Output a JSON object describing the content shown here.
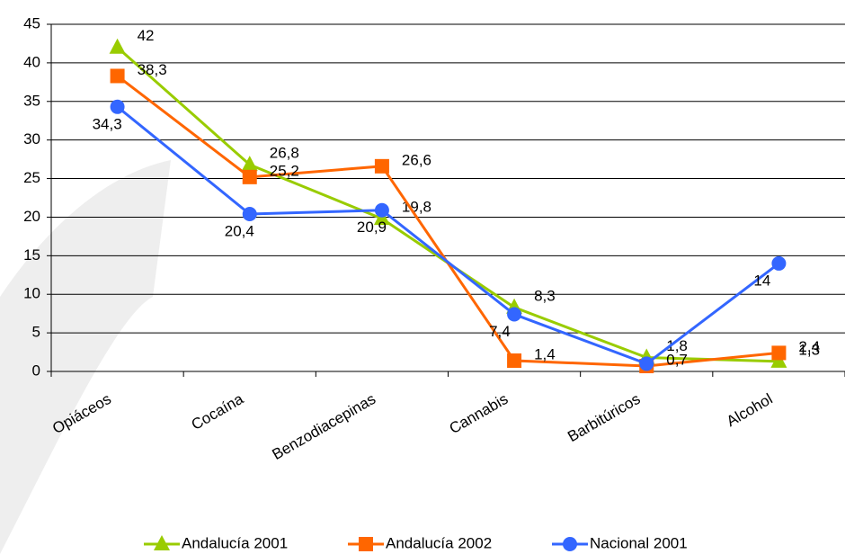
{
  "chart_data": {
    "type": "line",
    "categories": [
      "Opiáceos",
      "Cocaína",
      "Benzodiacepinas",
      "Cannabis",
      "Barbitúricos",
      "Alcohol"
    ],
    "series": [
      {
        "name": "Andalucía 2001",
        "color": "#99cc00",
        "marker": "triangle",
        "values": [
          42,
          26.8,
          19.8,
          8.3,
          1.8,
          1.3
        ],
        "value_labels": [
          "42",
          "26,8",
          "19,8",
          "8,3",
          "1,8",
          "1,3"
        ]
      },
      {
        "name": "Andalucía 2002",
        "color": "#ff6600",
        "marker": "square",
        "values": [
          38.3,
          25.2,
          26.6,
          1.4,
          0.7,
          2.4
        ],
        "value_labels": [
          "38,3",
          "25,2",
          "26,6",
          "1,4",
          "0,7",
          "2,4"
        ]
      },
      {
        "name": "Nacional 2001",
        "color": "#3366ff",
        "marker": "circle",
        "values": [
          34.3,
          20.4,
          20.9,
          7.4,
          1.0,
          14
        ],
        "value_labels": [
          "34,3",
          "20,4",
          "20,9",
          "7,4",
          null,
          "14"
        ]
      }
    ],
    "ylim": [
      0,
      45
    ],
    "yticks": [
      0,
      5,
      10,
      15,
      20,
      25,
      30,
      35,
      40,
      45
    ],
    "grid": true,
    "legend": "bottom"
  }
}
